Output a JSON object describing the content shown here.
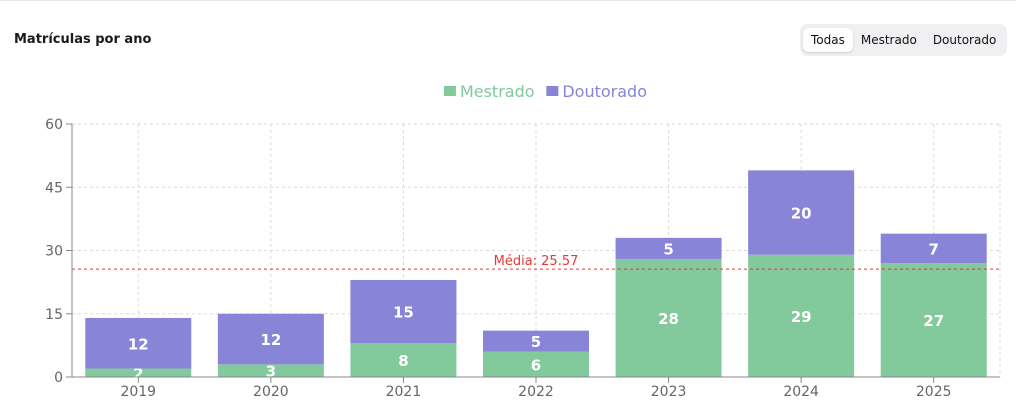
{
  "header": {
    "title": "Matrículas por ano"
  },
  "filters": {
    "options": [
      {
        "label": "Todas",
        "active": true
      },
      {
        "label": "Mestrado",
        "active": false
      },
      {
        "label": "Doutorado",
        "active": false
      }
    ]
  },
  "chart_data": {
    "type": "bar",
    "stacked": true,
    "categories": [
      "2019",
      "2020",
      "2021",
      "2022",
      "2023",
      "2024",
      "2025"
    ],
    "series": [
      {
        "name": "Mestrado",
        "values": [
          2,
          3,
          8,
          6,
          28,
          29,
          27
        ],
        "color": "#82c99c"
      },
      {
        "name": "Doutorado",
        "values": [
          12,
          12,
          15,
          5,
          5,
          20,
          7
        ],
        "color": "#8884d8"
      }
    ],
    "ylim": [
      0,
      60
    ],
    "yticks": [
      0,
      15,
      30,
      45,
      60
    ],
    "grid": true,
    "legend": "top-center",
    "reference_line": {
      "value": 25.57,
      "label": "Média: 25.57",
      "color": "#e53935"
    }
  }
}
